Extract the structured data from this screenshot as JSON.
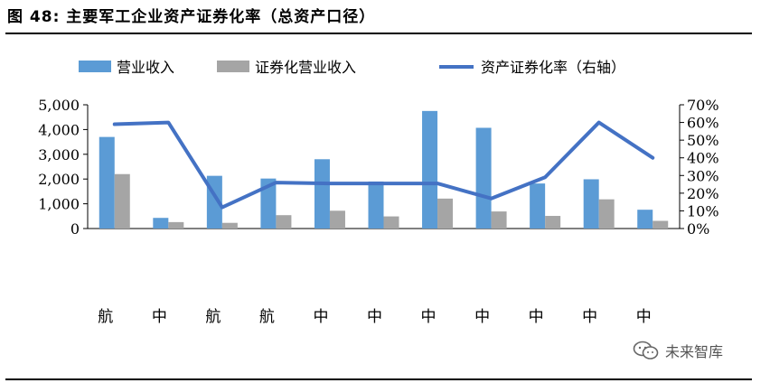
{
  "figure": {
    "title": "图  48:  主要军工企业资产证券化率（总资产口径）"
  },
  "watermark": {
    "text": "未来智库",
    "icon": "wechat-icon"
  },
  "colors": {
    "revenue": "#5b9bd5",
    "securitized": "#a5a5a5",
    "rate": "#4472c4"
  },
  "chart_data": {
    "type": "bar",
    "categories": [
      "航",
      "中",
      "航",
      "航",
      "中",
      "中",
      "中",
      "中",
      "中",
      "中",
      "中"
    ],
    "series": [
      {
        "name": "营业收入",
        "type": "bar",
        "axis": "left",
        "values": [
          3700,
          430,
          2130,
          2020,
          2800,
          1900,
          4750,
          4070,
          1820,
          1990,
          760
        ]
      },
      {
        "name": "证券化营业收入",
        "type": "bar",
        "axis": "left",
        "values": [
          2200,
          260,
          230,
          540,
          720,
          490,
          1210,
          690,
          510,
          1180,
          310
        ]
      },
      {
        "name": "资产证券化率（右轴）",
        "type": "line",
        "axis": "right",
        "values": [
          59,
          60,
          12,
          26,
          25.5,
          25.5,
          25.5,
          17,
          29,
          60,
          40
        ]
      }
    ],
    "y_left": {
      "ylim": [
        0,
        5000
      ],
      "ticks": [
        "0",
        "1,000",
        "2,000",
        "3,000",
        "4,000",
        "5,000"
      ]
    },
    "y_right": {
      "ylim": [
        0,
        70
      ],
      "ticks": [
        "0%",
        "10%",
        "20%",
        "30%",
        "40%",
        "50%",
        "60%",
        "70%"
      ]
    },
    "legend": "top",
    "grid": false
  }
}
